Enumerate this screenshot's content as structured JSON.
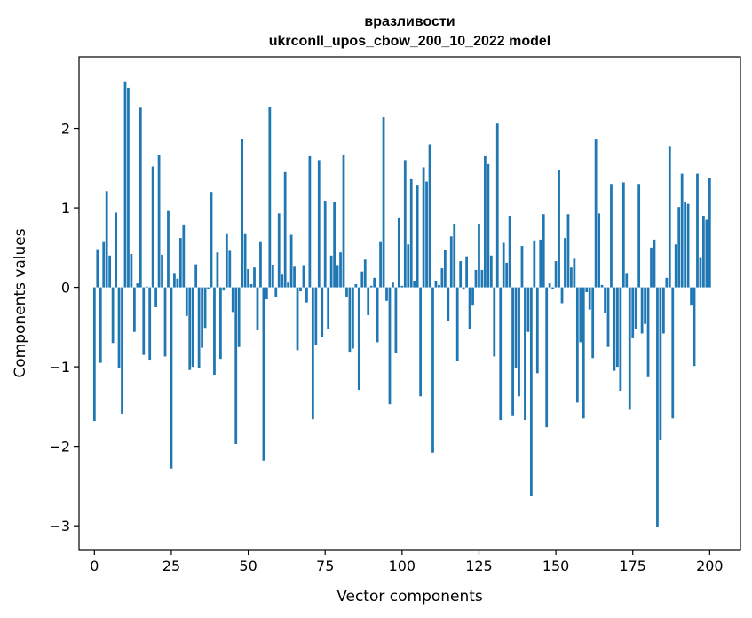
{
  "chart_data": {
    "type": "bar",
    "title_line1": "вразливости",
    "title_line2": "ukrconll_upos_cbow_200_10_2022 model",
    "xlabel": "Vector components",
    "ylabel": "Components values",
    "xlim": [
      -5,
      210
    ],
    "ylim": [
      -3.3,
      2.9
    ],
    "x_ticks": [
      0,
      25,
      50,
      75,
      100,
      125,
      150,
      175,
      200
    ],
    "y_ticks": [
      -3,
      -2,
      -1,
      0,
      1,
      2
    ],
    "x_tick_labels": [
      "0",
      "25",
      "50",
      "75",
      "100",
      "125",
      "150",
      "175",
      "200"
    ],
    "y_tick_labels": [
      "−3",
      "−2",
      "−1",
      "0",
      "1",
      "2"
    ],
    "grid": false,
    "bar_color": "#1f77b4",
    "values": [
      -1.68,
      0.48,
      -0.95,
      0.58,
      1.21,
      0.4,
      -0.7,
      0.94,
      -1.02,
      -1.59,
      2.59,
      2.51,
      0.42,
      -0.56,
      0.05,
      2.26,
      -0.85,
      0.01,
      -0.91,
      1.52,
      -0.25,
      1.67,
      0.41,
      -0.87,
      0.96,
      -2.28,
      0.17,
      0.11,
      0.62,
      0.79,
      -0.36,
      -1.04,
      -1.0,
      0.29,
      -1.02,
      -0.76,
      -0.51,
      -0.02,
      1.2,
      -1.1,
      0.44,
      -0.9,
      -0.04,
      0.68,
      0.46,
      -0.31,
      -1.97,
      -0.75,
      1.87,
      0.68,
      0.23,
      0.04,
      0.25,
      -0.54,
      0.58,
      -2.18,
      -0.15,
      2.27,
      0.28,
      -0.12,
      0.93,
      0.16,
      1.45,
      0.06,
      0.66,
      0.26,
      -0.79,
      -0.05,
      0.27,
      -0.19,
      1.65,
      -1.66,
      -0.72,
      1.6,
      -0.62,
      1.09,
      -0.52,
      0.4,
      1.07,
      0.27,
      0.44,
      1.66,
      -0.12,
      -0.81,
      -0.77,
      0.04,
      -1.29,
      0.2,
      0.35,
      -0.35,
      0.02,
      0.12,
      -0.69,
      0.58,
      2.14,
      -0.17,
      -1.47,
      0.06,
      -0.82,
      0.88,
      0.02,
      1.6,
      0.54,
      1.36,
      0.08,
      1.29,
      -1.37,
      1.51,
      1.33,
      1.8,
      -2.08,
      0.08,
      0.03,
      0.24,
      0.47,
      -0.42,
      0.64,
      0.8,
      -0.93,
      0.33,
      -0.03,
      0.39,
      -0.53,
      -0.23,
      0.22,
      0.8,
      0.22,
      1.65,
      1.55,
      0.4,
      -0.87,
      2.06,
      -1.67,
      0.56,
      0.31,
      0.9,
      -1.61,
      -1.02,
      -1.37,
      0.52,
      -1.67,
      -0.56,
      -2.63,
      0.59,
      -1.08,
      0.6,
      0.92,
      -1.76,
      0.05,
      -0.02,
      0.33,
      1.47,
      -0.2,
      0.62,
      0.92,
      0.25,
      0.36,
      -1.45,
      -0.69,
      -1.65,
      -0.06,
      -0.28,
      -0.89,
      1.86,
      0.93,
      0.03,
      -0.32,
      -0.75,
      1.3,
      -1.05,
      -1.0,
      -1.3,
      1.32,
      0.17,
      -1.54,
      -0.64,
      -0.52,
      1.3,
      -0.58,
      -0.46,
      -1.13,
      0.5,
      0.6,
      -3.02,
      -1.92,
      -0.58,
      0.12,
      1.78,
      -1.65,
      0.54,
      1.01,
      1.43,
      1.08,
      1.05,
      -0.23,
      -0.99,
      1.43,
      0.38,
      0.9,
      0.85,
      1.37
    ]
  }
}
